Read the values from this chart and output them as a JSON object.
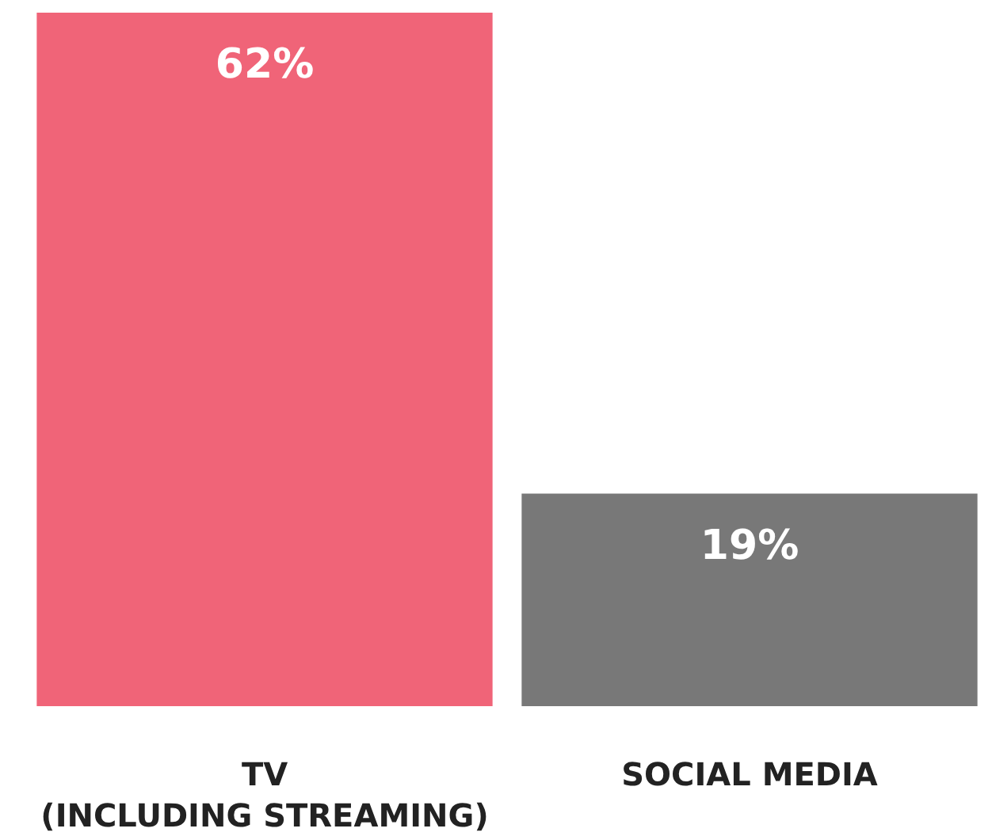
{
  "chart_data": {
    "type": "bar",
    "categories": [
      "TV\n(INCLUDING STREAMING)",
      "SOCIAL MEDIA"
    ],
    "values": [
      62,
      19
    ],
    "colors": [
      "#f06478",
      "#787878"
    ],
    "value_labels": [
      "62%",
      "19%"
    ]
  }
}
